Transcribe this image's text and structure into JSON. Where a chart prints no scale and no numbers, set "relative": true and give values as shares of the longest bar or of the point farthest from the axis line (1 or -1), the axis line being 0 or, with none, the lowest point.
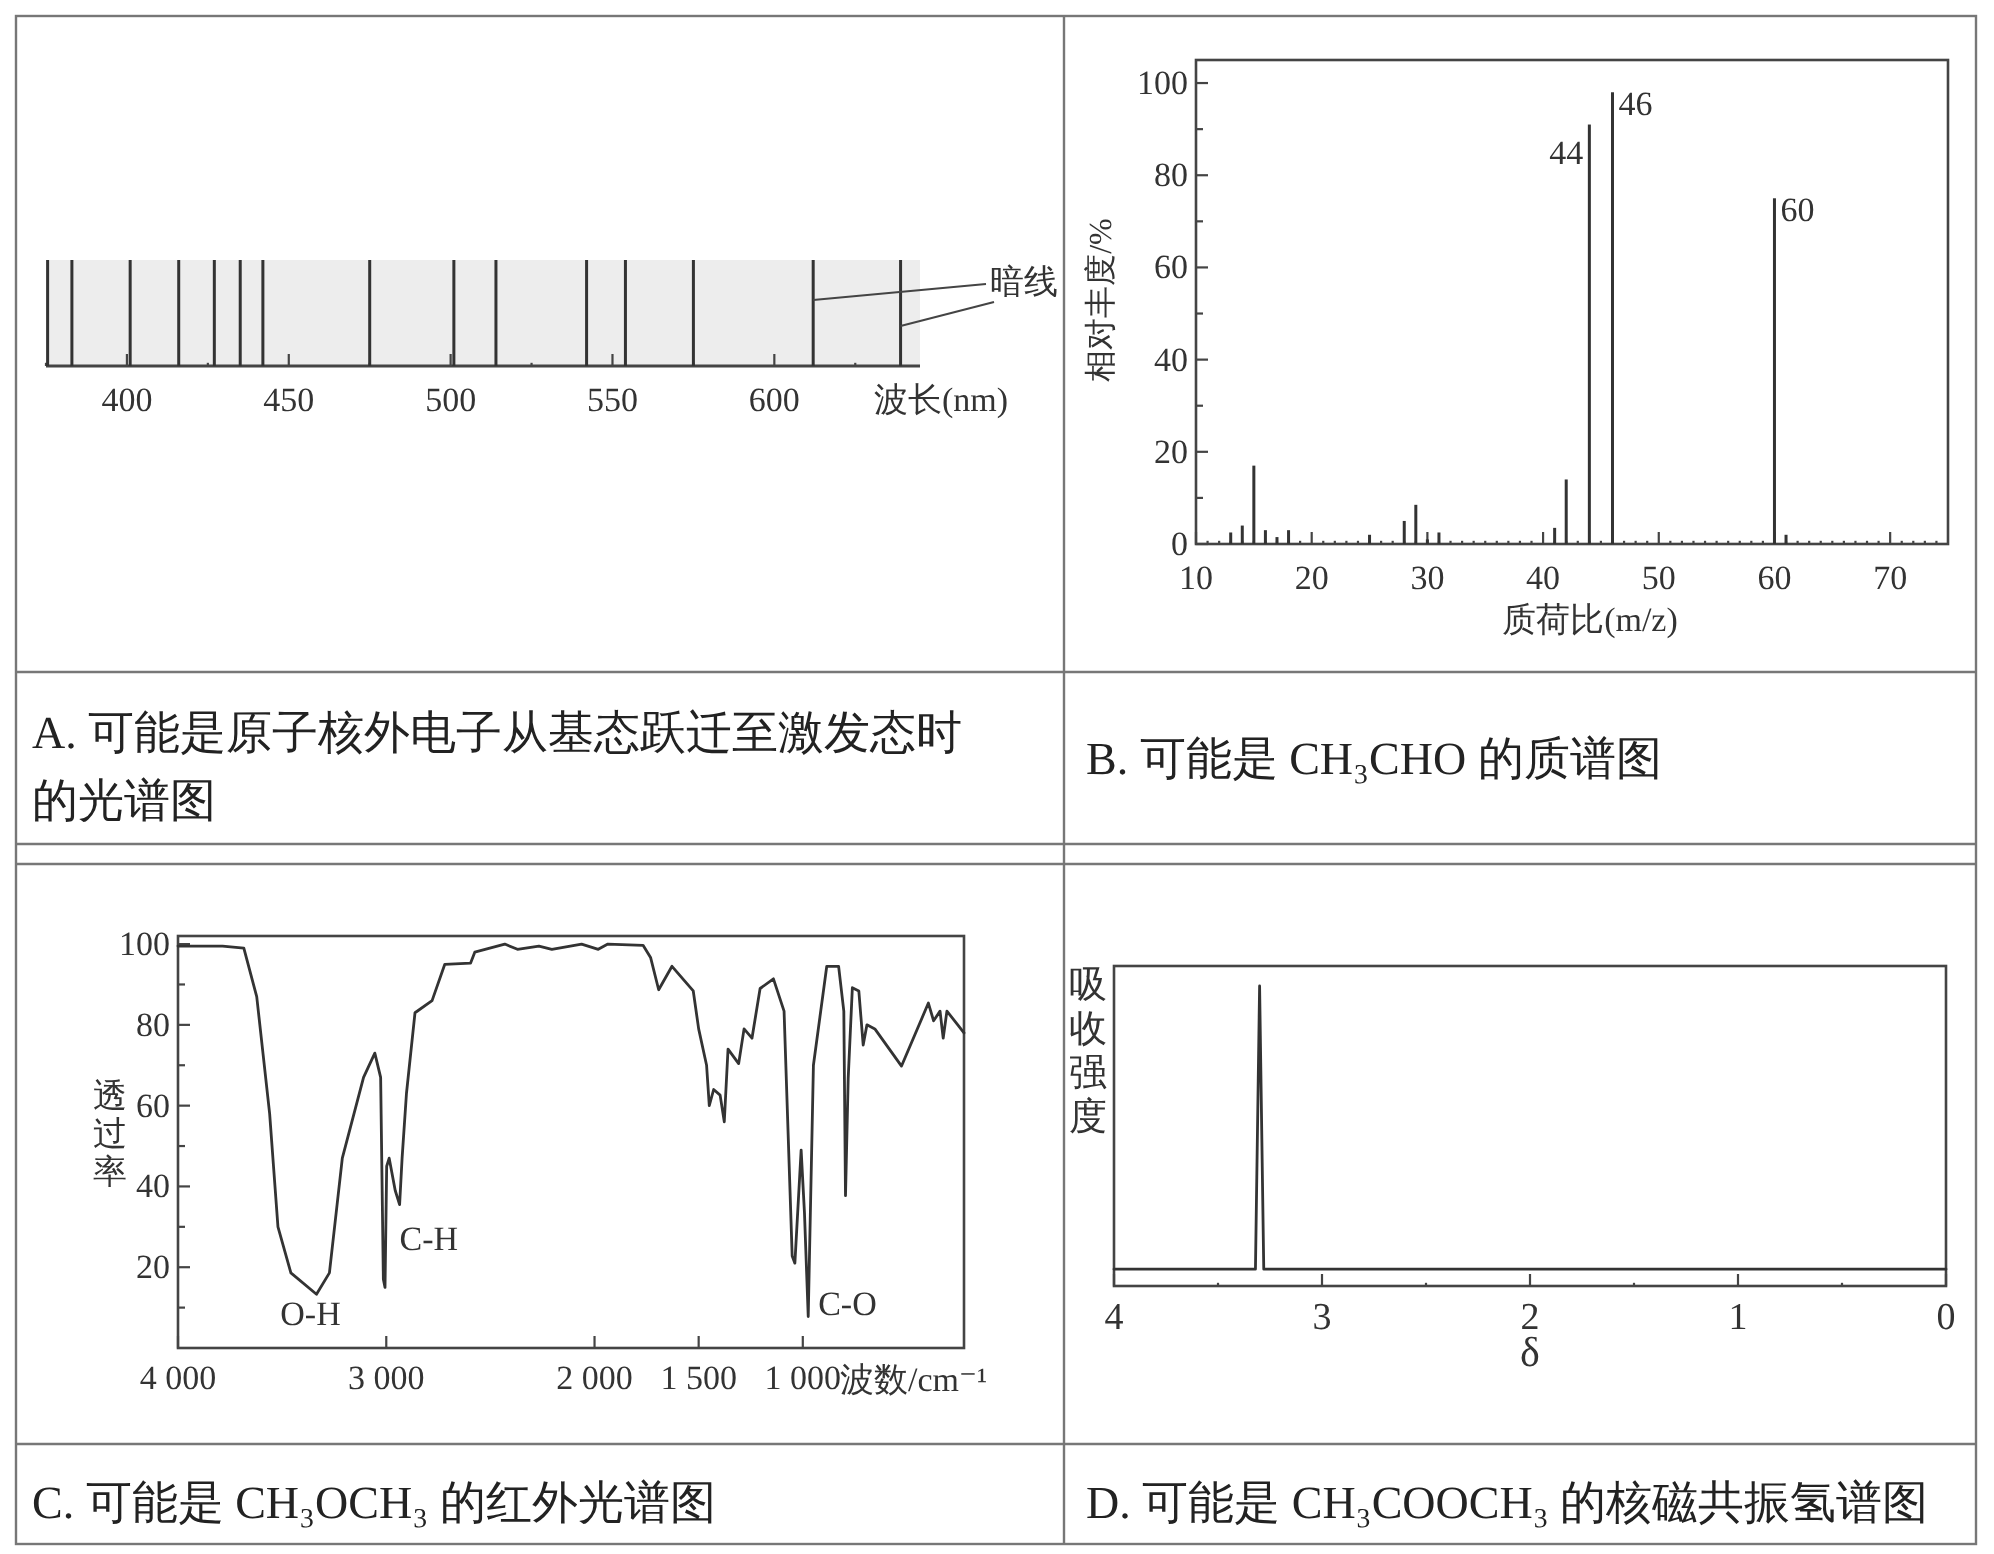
{
  "chart_data": [
    {
      "type": "bar",
      "title": "A. 可能是原子核外电子从基态跃迁至激发态时的光谱图",
      "relative": true,
      "color": "#333333",
      "xlabel": "波长(nm)",
      "annotations": [
        "暗线"
      ],
      "x": [
        375.5,
        383,
        401,
        416,
        427,
        435,
        442,
        475,
        501,
        514,
        542,
        554,
        575,
        612,
        639
      ],
      "values": [
        1,
        1,
        1,
        1,
        1,
        1,
        1,
        1,
        1,
        1,
        1,
        1,
        1,
        1,
        1
      ],
      "xlim": [
        375,
        645
      ],
      "xticks": [
        {
          "value": 375,
          "label": null
        },
        400,
        {
          "value": 425,
          "label": null
        },
        450,
        {
          "value": 475,
          "label": null
        },
        500,
        {
          "value": 525,
          "label": null
        },
        550,
        {
          "value": 575,
          "label": null
        },
        600,
        {
          "value": 625,
          "label": null
        }
      ]
    },
    {
      "type": "bar",
      "title": "B. 可能是 CH₃CHO 的质谱图",
      "color": "#333333",
      "xlabel": "质荷比(m/z)",
      "ylabel": "相对丰度/%",
      "x": [
        13,
        14,
        15,
        16,
        17,
        18,
        25,
        28,
        29,
        30,
        31,
        41,
        42,
        44,
        46,
        60,
        61
      ],
      "values": [
        2.5,
        4,
        17,
        3,
        1.5,
        3,
        2,
        5,
        8.5,
        1,
        2.5,
        3.5,
        14,
        91,
        98,
        75,
        2
      ],
      "annotations": [
        {
          "text": "44",
          "x": 44,
          "y": 91
        },
        {
          "text": "46",
          "x": 46,
          "y": 98
        },
        {
          "text": "60",
          "x": 60,
          "y": 75
        }
      ],
      "xlim": [
        10,
        75
      ],
      "ylim": [
        0,
        105
      ],
      "xticks": [
        10,
        {
          "value": 11,
          "label": null
        },
        {
          "value": 12,
          "label": null
        },
        {
          "value": 13,
          "label": null
        },
        {
          "value": 14,
          "label": null
        },
        {
          "value": 15,
          "label": null
        },
        {
          "value": 16,
          "label": null
        },
        {
          "value": 17,
          "label": null
        },
        {
          "value": 18,
          "label": null
        },
        {
          "value": 19,
          "label": null
        },
        20,
        {
          "value": 21,
          "label": null
        },
        {
          "value": 22,
          "label": null
        },
        {
          "value": 23,
          "label": null
        },
        {
          "value": 24,
          "label": null
        },
        {
          "value": 25,
          "label": null
        },
        {
          "value": 26,
          "label": null
        },
        {
          "value": 27,
          "label": null
        },
        {
          "value": 28,
          "label": null
        },
        {
          "value": 29,
          "label": null
        },
        30,
        {
          "value": 31,
          "label": null
        },
        {
          "value": 32,
          "label": null
        },
        {
          "value": 33,
          "label": null
        },
        {
          "value": 34,
          "label": null
        },
        {
          "value": 35,
          "label": null
        },
        {
          "value": 36,
          "label": null
        },
        {
          "value": 37,
          "label": null
        },
        {
          "value": 38,
          "label": null
        },
        {
          "value": 39,
          "label": null
        },
        40,
        {
          "value": 41,
          "label": null
        },
        {
          "value": 42,
          "label": null
        },
        {
          "value": 43,
          "label": null
        },
        {
          "value": 44,
          "label": null
        },
        {
          "value": 45,
          "label": null
        },
        {
          "value": 46,
          "label": null
        },
        {
          "value": 47,
          "label": null
        },
        {
          "value": 48,
          "label": null
        },
        {
          "value": 49,
          "label": null
        },
        50,
        {
          "value": 51,
          "label": null
        },
        {
          "value": 52,
          "label": null
        },
        {
          "value": 53,
          "label": null
        },
        {
          "value": 54,
          "label": null
        },
        {
          "value": 55,
          "label": null
        },
        {
          "value": 56,
          "label": null
        },
        {
          "value": 57,
          "label": null
        },
        {
          "value": 58,
          "label": null
        },
        {
          "value": 59,
          "label": null
        },
        60,
        {
          "value": 61,
          "label": null
        },
        {
          "value": 62,
          "label": null
        },
        {
          "value": 63,
          "label": null
        },
        {
          "value": 64,
          "label": null
        },
        {
          "value": 65,
          "label": null
        },
        {
          "value": 66,
          "label": null
        },
        {
          "value": 67,
          "label": null
        },
        {
          "value": 68,
          "label": null
        },
        {
          "value": 69,
          "label": null
        },
        70,
        {
          "value": 71,
          "label": null
        },
        {
          "value": 72,
          "label": null
        },
        {
          "value": 73,
          "label": null
        },
        {
          "value": 74,
          "label": null
        }
      ],
      "yticks": [
        0,
        {
          "value": 10,
          "label": null
        },
        20,
        {
          "value": 30,
          "label": null
        },
        40,
        {
          "value": 50,
          "label": null
        },
        60,
        {
          "value": 70,
          "label": null
        },
        80,
        {
          "value": 90,
          "label": null
        },
        100
      ]
    },
    {
      "type": "line",
      "title": "C. 可能是 CH₃OCH₃ 的红外光谱图",
      "color": "#333333",
      "xlabel": "波数/cm⁻¹",
      "ylabel": "透过率",
      "x": [
        4000,
        3786,
        3684,
        3622,
        3560,
        3520,
        3458,
        3335,
        3273,
        3211,
        3109,
        3055,
        3027,
        3014,
        3006,
        2998,
        2986,
        2957,
        2936,
        2924,
        2903,
        2862,
        2780,
        2719,
        2595,
        2575,
        2431,
        2370,
        2267,
        2205,
        2062,
        1982,
        1936,
        1767,
        1731,
        1692,
        1628,
        1526,
        1500,
        1462,
        1449,
        1428,
        1397,
        1377,
        1359,
        1308,
        1282,
        1244,
        1205,
        1141,
        1090,
        1051,
        1038,
        1008,
        992,
        974,
        949,
        885,
        828,
        803,
        795,
        782,
        762,
        731,
        710,
        692,
        654,
        526,
        397,
        372,
        341,
        326,
        308,
        256,
        226
      ],
      "values": [
        99.5,
        99.5,
        99,
        87,
        58,
        30,
        18.6,
        13.3,
        18.6,
        47,
        67,
        73,
        67,
        17,
        15,
        45,
        47,
        39,
        35.5,
        47,
        63,
        83,
        86,
        95,
        95.3,
        98,
        100,
        98.7,
        99.5,
        98.7,
        100,
        98.7,
        100,
        99.7,
        96.7,
        88.7,
        94.5,
        88.4,
        79,
        70,
        60,
        64,
        62.6,
        56,
        74,
        70.4,
        79,
        76.7,
        89,
        91.4,
        83.4,
        22.8,
        21,
        49,
        33.5,
        7.8,
        70,
        94.5,
        94.5,
        83.4,
        37.7,
        66.8,
        89.2,
        88.4,
        75,
        80,
        79,
        69.8,
        85.4,
        81,
        83.4,
        76.7,
        83.4,
        80,
        78
      ],
      "annotations": [
        {
          "text": "O-H",
          "x": 3335,
          "y": 13.3
        },
        {
          "text": "C-H",
          "x": 2936,
          "y": 35.5
        },
        {
          "text": "C-O",
          "x": 974,
          "y": 7.8
        }
      ],
      "xlim": [
        4000,
        226
      ],
      "ylim": [
        0,
        102
      ],
      "xticks": [
        {
          "value": 4000,
          "label": "4 000"
        },
        {
          "value": 3000,
          "label": "3 000"
        },
        {
          "value": 2000,
          "label": "2 000"
        },
        {
          "value": 1500,
          "label": "1 500"
        },
        {
          "value": 1000,
          "label": "1 000"
        }
      ],
      "yticks": [
        {
          "value": 10,
          "label": null
        },
        20,
        {
          "value": 30,
          "label": null
        },
        40,
        {
          "value": 50,
          "label": null
        },
        60,
        {
          "value": 70,
          "label": null
        },
        80,
        {
          "value": 90,
          "label": null
        },
        100
      ]
    },
    {
      "type": "line",
      "title": "D. 可能是 CH₃COOCH₃ 的核磁共振氢谱图",
      "relative": true,
      "color": "#333333",
      "xlabel": "δ",
      "ylabel": "吸收强度",
      "x": [
        4,
        3.32,
        3.3,
        3.28,
        0
      ],
      "values": [
        0.056,
        0.056,
        1,
        0.056,
        0.056
      ],
      "xlim": [
        4,
        0
      ],
      "xticks": [
        4,
        {
          "value": 3.5,
          "label": null
        },
        3,
        {
          "value": 2.5,
          "label": null
        },
        2,
        {
          "value": 1.5,
          "label": null
        },
        1,
        {
          "value": 0.5,
          "label": null
        },
        0
      ]
    }
  ]
}
